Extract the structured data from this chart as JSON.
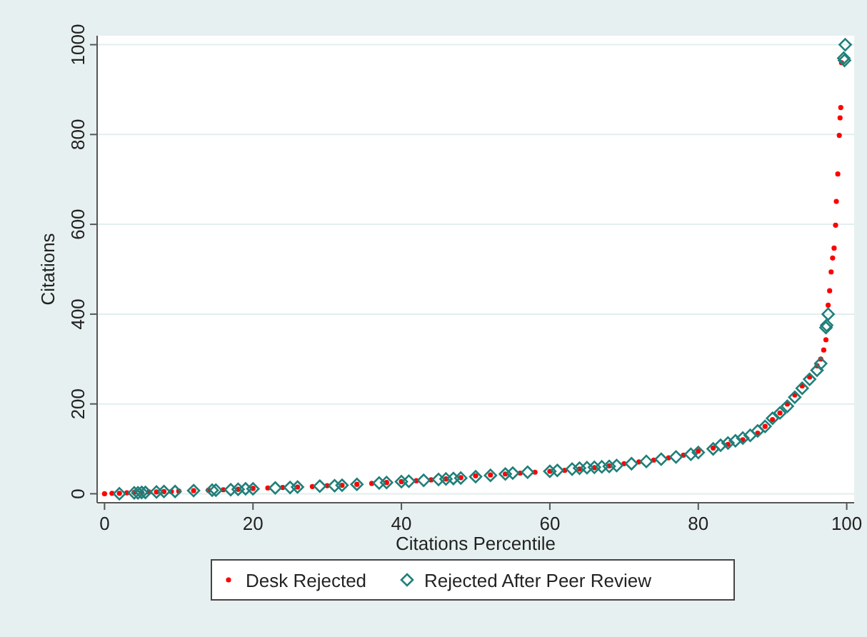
{
  "chart_data": {
    "type": "scatter",
    "xlabel": "Citations Percentile",
    "ylabel": "Citations",
    "xlim": [
      -1,
      101
    ],
    "ylim": [
      -20,
      1020
    ],
    "xticks": [
      0,
      20,
      40,
      60,
      80,
      100
    ],
    "yticks": [
      0,
      200,
      400,
      600,
      800,
      1000
    ],
    "grid": "y",
    "legend": "bottom",
    "series": [
      {
        "name": "Desk Rejected",
        "color": "#ff0000",
        "marker": "circle",
        "x": [
          0,
          1,
          2,
          3,
          4,
          5,
          6,
          7,
          8,
          9,
          10,
          12,
          14,
          16,
          18,
          20,
          22,
          24,
          26,
          28,
          30,
          32,
          34,
          36,
          38,
          40,
          42,
          44,
          46,
          48,
          50,
          52,
          54,
          56,
          58,
          60,
          62,
          64,
          66,
          68,
          70,
          72,
          74,
          76,
          78,
          80,
          82,
          84,
          86,
          88,
          89,
          90,
          91,
          92,
          93,
          94,
          95,
          96,
          96.5,
          96.9,
          97.2,
          97.5,
          97.7,
          97.9,
          98.1,
          98.3,
          98.5,
          98.6,
          98.8,
          99,
          99.1,
          99.2,
          99.3
        ],
        "values": [
          0,
          1,
          1,
          2,
          3,
          3,
          4,
          4,
          5,
          5,
          6,
          7,
          8,
          9,
          10,
          12,
          13,
          14,
          15,
          16,
          18,
          19,
          21,
          23,
          25,
          27,
          29,
          31,
          33,
          36,
          40,
          42,
          44,
          46,
          48,
          50,
          52,
          55,
          58,
          62,
          67,
          71,
          75,
          80,
          86,
          95,
          102,
          110,
          120,
          135,
          150,
          165,
          180,
          200,
          220,
          240,
          260,
          285,
          300,
          320,
          343,
          420,
          452,
          494,
          525,
          547,
          598,
          651,
          712,
          798,
          837,
          860,
          960
        ]
      },
      {
        "name": "Rejected After Peer Review",
        "color": "#1f7f7a",
        "marker": "diamond",
        "x": [
          2,
          4,
          4.5,
          5,
          5.5,
          7,
          8,
          9.5,
          12,
          14.5,
          15,
          17,
          18,
          19,
          20,
          23,
          25,
          26,
          29,
          31,
          32,
          34,
          37,
          38,
          40,
          41,
          43,
          45,
          46,
          47,
          48,
          50,
          52,
          54,
          55,
          57,
          60,
          61,
          63,
          64,
          65,
          66,
          67,
          68,
          69,
          71,
          73,
          75,
          77,
          79,
          80,
          82,
          83,
          84,
          85,
          86,
          87,
          88,
          89,
          90,
          91,
          92,
          93,
          94,
          95,
          96,
          96.5,
          97.2,
          97.3,
          97.5,
          99.6,
          99.7,
          99.8
        ],
        "values": [
          0,
          2,
          2,
          3,
          3,
          4,
          5,
          5,
          7,
          8,
          8,
          9,
          10,
          11,
          11,
          13,
          14,
          15,
          17,
          18,
          19,
          21,
          24,
          25,
          27,
          28,
          30,
          32,
          33,
          34,
          35,
          38,
          41,
          44,
          46,
          48,
          50,
          52,
          55,
          57,
          58,
          59,
          60,
          61,
          63,
          67,
          72,
          77,
          82,
          88,
          92,
          100,
          108,
          113,
          118,
          124,
          130,
          140,
          150,
          168,
          180,
          195,
          215,
          235,
          255,
          275,
          290,
          370,
          375,
          400,
          970,
          965,
          1000
        ]
      }
    ]
  }
}
